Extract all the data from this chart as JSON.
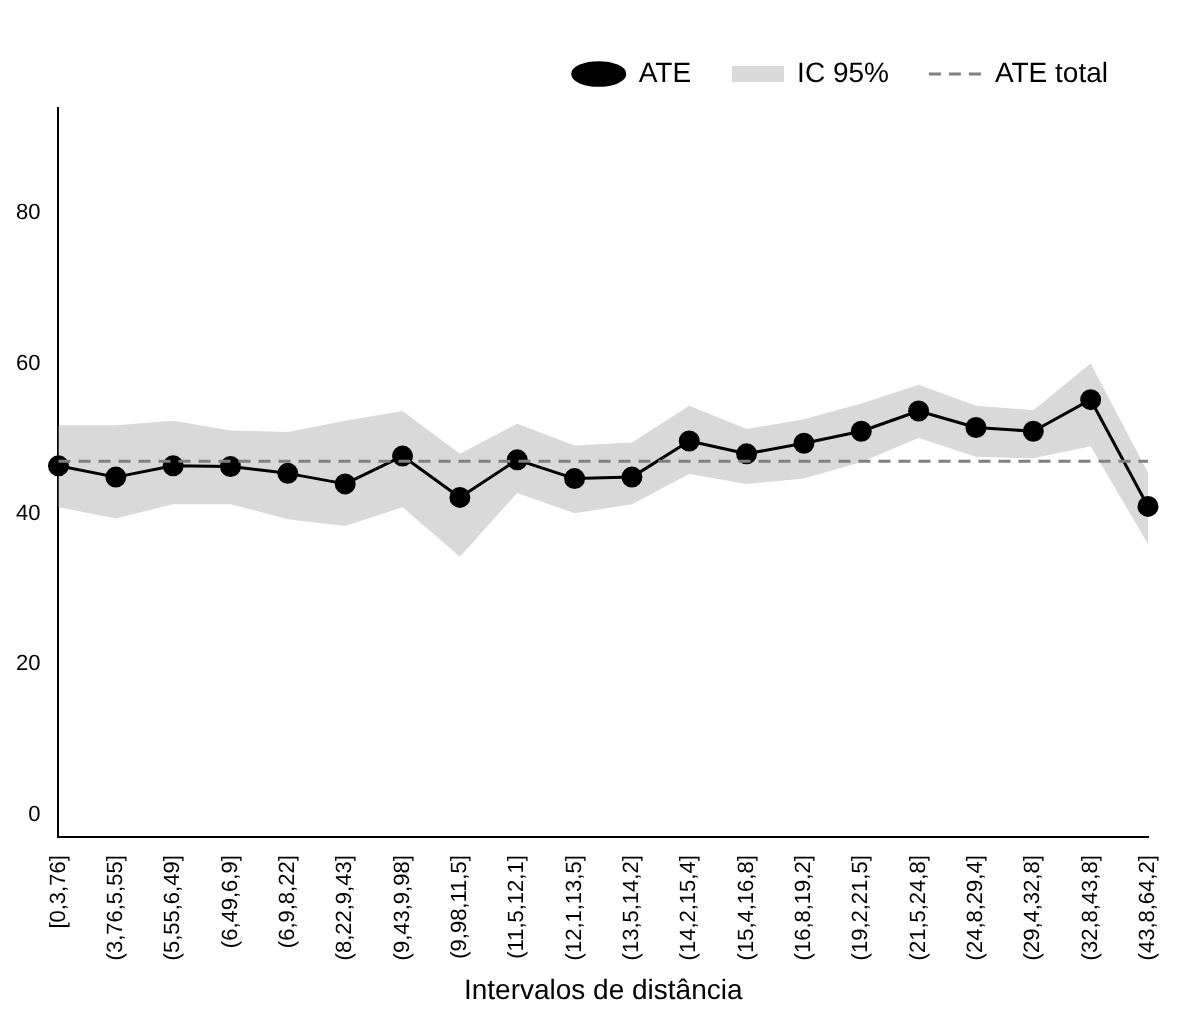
{
  "chart_data": {
    "type": "line",
    "xlabel": "Intervalos de distância",
    "categories": [
      "[0,3,76]",
      "(3,76,5,55]",
      "(5,55,6,49]",
      "(6,49,6,9]",
      "(6,9,8,22]",
      "(8,22,9,43]",
      "(9,43,9,98]",
      "(9,98,11,5]",
      "(11,5,12,1]",
      "(12,1,13,5]",
      "(13,5,14,2]",
      "(14,2,15,4]",
      "(15,4,16,8]",
      "(16,8,19,2]",
      "(19,2,21,5]",
      "(21,5,24,8]",
      "(24,8,29,4]",
      "(29,4,32,8]",
      "(32,8,43,8]",
      "(43,8,64,2]"
    ],
    "series": [
      {
        "name": "ATE",
        "color": "#000000",
        "values": [
          46.4,
          44.9,
          46.4,
          46.3,
          45.4,
          44,
          47.7,
          42.2,
          47.2,
          44.7,
          44.9,
          49.7,
          48,
          49.4,
          51,
          53.7,
          51.5,
          51,
          55.2,
          41
        ],
        "lower": [
          40.9,
          39.4,
          41.3,
          41.3,
          39.3,
          38.4,
          40.9,
          34.3,
          42.8,
          40.1,
          41.3,
          45.3,
          44,
          44.7,
          46.9,
          50.1,
          47.6,
          47.4,
          49,
          36
        ],
        "upper": [
          51.8,
          51.8,
          52.4,
          51.1,
          50.9,
          52.4,
          53.7,
          48,
          52,
          49.1,
          49.5,
          54.4,
          51.3,
          52.6,
          54.7,
          57.2,
          54.4,
          53.8,
          60,
          45.5
        ]
      }
    ],
    "annotations": [
      "IC 95%"
    ],
    "ref_lines": [
      {
        "axis": "y",
        "value": 47,
        "label": "ATE total",
        "color": "#808080",
        "line_style": "dashed"
      }
    ],
    "ylim": [
      -3,
      94
    ],
    "yticks": [
      0,
      20,
      40,
      60,
      80
    ],
    "marker": "circle",
    "line_style": "solid",
    "legend": "top right",
    "grid": false
  }
}
